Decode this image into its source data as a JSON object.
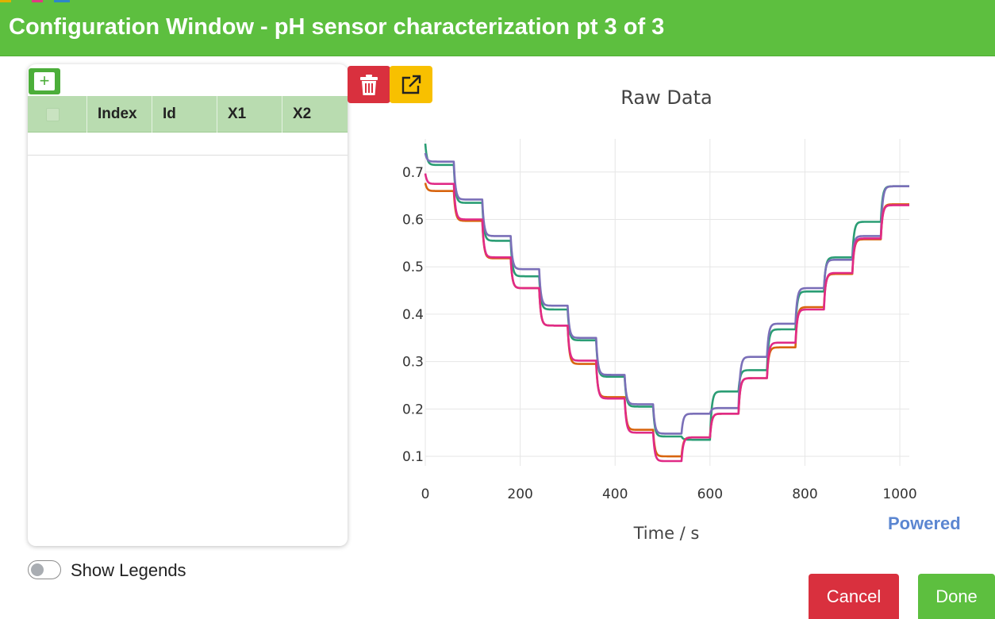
{
  "window": {
    "title": "Configuration Window - pH sensor characterization pt 3 of 3"
  },
  "table": {
    "add_label": "+",
    "columns": [
      "Index",
      "Id",
      "X1",
      "X2"
    ],
    "rows": []
  },
  "toolbar": {
    "delete_icon": "trash-icon",
    "export_icon": "external-link-icon"
  },
  "chart_data": {
    "type": "line",
    "title": "Raw Data",
    "xlabel": "Time / s",
    "ylabel": "",
    "xlim": [
      0,
      1020
    ],
    "ylim": [
      0.08,
      0.77
    ],
    "x_ticks": [
      0,
      200,
      400,
      600,
      800,
      1000
    ],
    "y_ticks": [
      0.1,
      0.2,
      0.3,
      0.4,
      0.5,
      0.6,
      0.7
    ],
    "grid": true,
    "step_times": [
      60,
      120,
      180,
      240,
      300,
      360,
      420,
      480,
      540,
      600,
      660,
      720,
      780,
      840,
      900,
      960
    ],
    "series": [
      {
        "color": "#2a9d74",
        "start": 0.76,
        "levels": [
          0.715,
          0.635,
          0.555,
          0.48,
          0.41,
          0.345,
          0.268,
          0.205,
          0.142,
          0.135,
          0.237,
          0.282,
          0.368,
          0.448,
          0.52,
          0.595,
          0.67
        ]
      },
      {
        "color": "#7a6fb8",
        "start": 0.74,
        "levels": [
          0.722,
          0.642,
          0.565,
          0.495,
          0.418,
          0.35,
          0.272,
          0.21,
          0.148,
          0.19,
          0.202,
          0.31,
          0.38,
          0.455,
          0.515,
          0.565,
          0.67
        ]
      },
      {
        "color": "#d8640e",
        "start": 0.677,
        "levels": [
          0.66,
          0.597,
          0.518,
          0.455,
          0.376,
          0.295,
          0.225,
          0.156,
          0.1,
          0.14,
          0.19,
          0.265,
          0.33,
          0.415,
          0.485,
          0.558,
          0.632
        ]
      },
      {
        "color": "#e02a86",
        "start": 0.697,
        "levels": [
          0.675,
          0.6,
          0.52,
          0.455,
          0.376,
          0.302,
          0.222,
          0.15,
          0.09,
          0.14,
          0.19,
          0.265,
          0.34,
          0.41,
          0.487,
          0.56,
          0.63
        ]
      }
    ]
  },
  "watermark": {
    "text": "Powered"
  },
  "legend_toggle": {
    "label": "Show Legends",
    "checked": false
  },
  "footer": {
    "cancel_label": "Cancel",
    "done_label": "Done"
  },
  "colors": {
    "accent": "#5dbf3f",
    "danger": "#d9303e",
    "warning": "#f8c000",
    "header_row": "#b9dcb0"
  }
}
